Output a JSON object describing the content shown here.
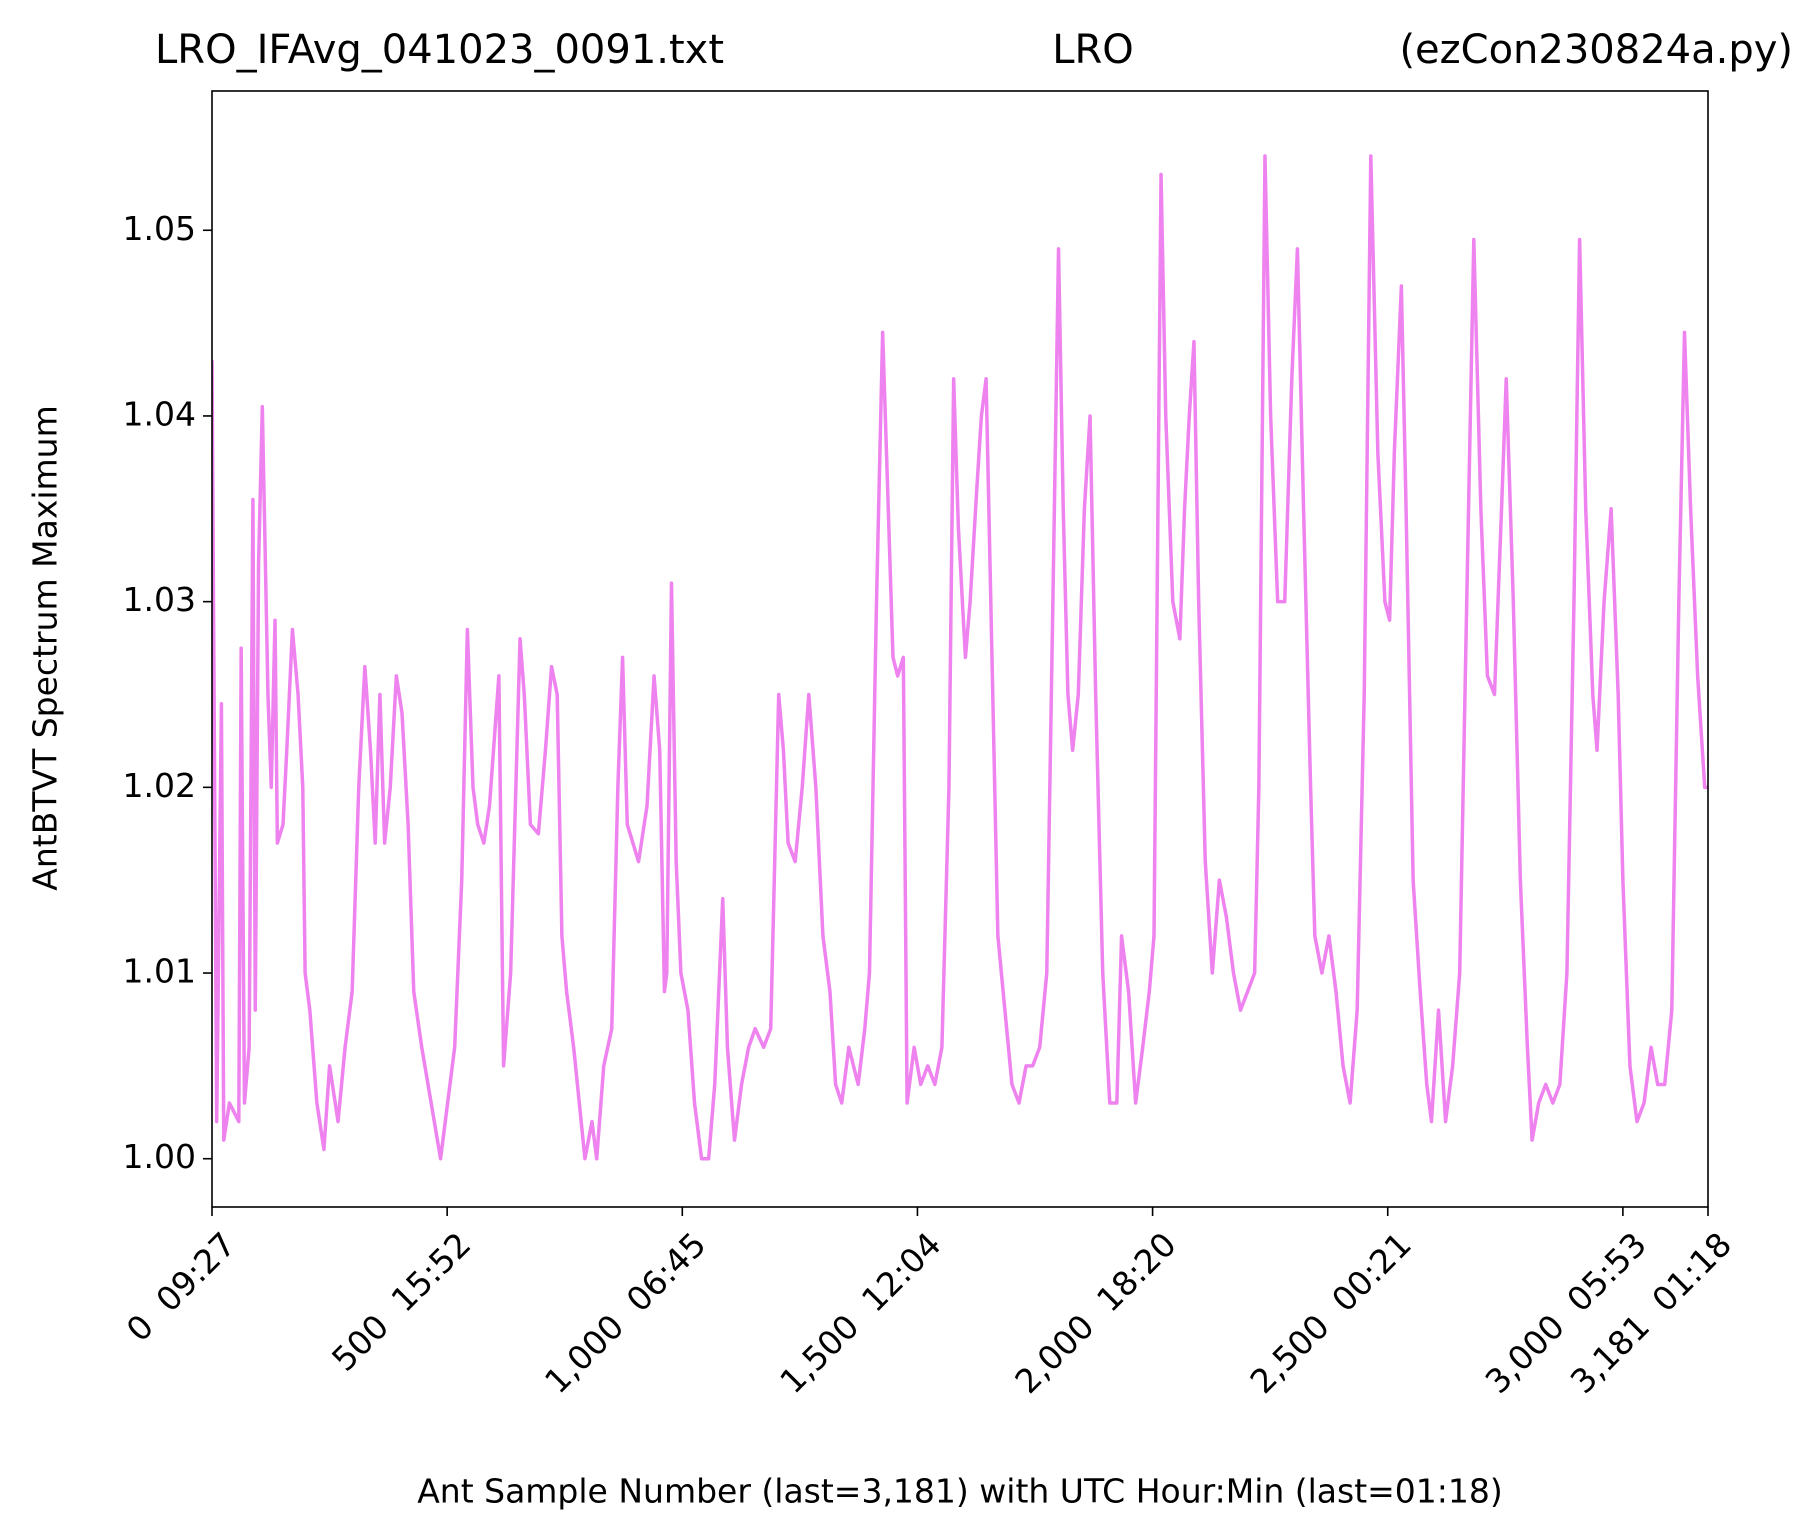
{
  "chart_data": {
    "type": "line",
    "title": [
      "LRO_IFAvg_041023_0091.txt",
      "LRO",
      "(ezCon230824a.py)"
    ],
    "x_label": "Ant Sample Number (last=3,181) with UTC Hour:Min (last=01:18)",
    "y_label": "AntBTVT Spectrum Maximum",
    "xlim": [
      0,
      3181
    ],
    "ylim": [
      0.9974,
      1.0575
    ],
    "xticks": [
      {
        "value": 0,
        "label": "0  09:27"
      },
      {
        "value": 500,
        "label": "500  15:52"
      },
      {
        "value": 1000,
        "label": "1,000  06:45"
      },
      {
        "value": 1500,
        "label": "1,500  12:04"
      },
      {
        "value": 2000,
        "label": "2,000  18:20"
      },
      {
        "value": 2500,
        "label": "2,500  00:21"
      },
      {
        "value": 3000,
        "label": "3,000  05:53"
      },
      {
        "value": 3181,
        "label": "3,181  01:18"
      }
    ],
    "yticks": [
      {
        "value": 1,
        "label": "1.00"
      },
      1.01,
      1.02,
      1.03,
      1.04,
      1.05
    ],
    "grid": false,
    "color": "#ee82ee",
    "x": [
      0,
      10,
      20,
      25,
      37,
      57,
      62,
      69,
      79,
      87,
      92,
      99,
      107,
      119,
      126,
      134,
      139,
      151,
      159,
      171,
      183,
      193,
      198,
      208,
      223,
      238,
      250,
      268,
      283,
      298,
      312,
      325,
      337,
      347,
      357,
      367,
      379,
      392,
      404,
      417,
      429,
      446,
      466,
      486,
      501,
      516,
      531,
      543,
      555,
      565,
      578,
      590,
      610,
      620,
      635,
      655,
      664,
      677,
      694,
      709,
      722,
      734,
      744,
      754,
      769,
      781,
      793,
      808,
      818,
      833,
      850,
      863,
      873,
      883,
      895,
      907,
      925,
      940,
      952,
      962,
      967,
      977,
      987,
      997,
      1012,
      1026,
      1041,
      1056,
      1069,
      1086,
      1096,
      1111,
      1126,
      1141,
      1155,
      1173,
      1188,
      1205,
      1215,
      1225,
      1240,
      1255,
      1269,
      1284,
      1299,
      1314,
      1326,
      1339,
      1354,
      1374,
      1388,
      1398,
      1413,
      1426,
      1438,
      1448,
      1458,
      1470,
      1478,
      1493,
      1507,
      1522,
      1537,
      1552,
      1567,
      1577,
      1587,
      1602,
      1612,
      1626,
      1636,
      1646,
      1656,
      1671,
      1686,
      1701,
      1716,
      1731,
      1745,
      1760,
      1775,
      1788,
      1800,
      1810,
      1820,
      1830,
      1842,
      1855,
      1867,
      1879,
      1894,
      1909,
      1924,
      1934,
      1949,
      1964,
      1979,
      1993,
      2003,
      2018,
      2028,
      2043,
      2058,
      2068,
      2078,
      2088,
      2098,
      2112,
      2127,
      2142,
      2157,
      2172,
      2187,
      2202,
      2217,
      2226,
      2239,
      2251,
      2266,
      2281,
      2296,
      2308,
      2321,
      2336,
      2345,
      2360,
      2375,
      2390,
      2405,
      2420,
      2435,
      2450,
      2464,
      2479,
      2494,
      2504,
      2514,
      2529,
      2539,
      2554,
      2569,
      2583,
      2593,
      2608,
      2623,
      2638,
      2653,
      2668,
      2683,
      2698,
      2712,
      2727,
      2742,
      2752,
      2767,
      2782,
      2797,
      2807,
      2821,
      2836,
      2851,
      2866,
      2881,
      2896,
      2908,
      2921,
      2936,
      2945,
      2960,
      2975,
      2990,
      3000,
      3015,
      3030,
      3045,
      3060,
      3074,
      3089,
      3104,
      3119,
      3131,
      3144,
      3159,
      3174,
      3181
    ],
    "values": [
      1.043,
      1.002,
      1.0245,
      1.001,
      1.003,
      1.002,
      1.0275,
      1.003,
      1.006,
      1.0355,
      1.008,
      1.032,
      1.0405,
      1.025,
      1.02,
      1.029,
      1.017,
      1.018,
      1.022,
      1.0285,
      1.025,
      1.02,
      1.01,
      1.008,
      1.003,
      1.0005,
      1.005,
      1.002,
      1.006,
      1.009,
      1.02,
      1.0265,
      1.022,
      1.017,
      1.025,
      1.017,
      1.02,
      1.026,
      1.024,
      1.018,
      1.009,
      1.006,
      1.003,
      1.0,
      1.003,
      1.006,
      1.015,
      1.0285,
      1.02,
      1.018,
      1.017,
      1.019,
      1.026,
      1.005,
      1.01,
      1.028,
      1.025,
      1.018,
      1.0175,
      1.022,
      1.0265,
      1.025,
      1.012,
      1.009,
      1.006,
      1.003,
      1.0,
      1.002,
      1.0,
      1.005,
      1.007,
      1.02,
      1.027,
      1.018,
      1.017,
      1.016,
      1.019,
      1.026,
      1.022,
      1.009,
      1.01,
      1.031,
      1.016,
      1.01,
      1.008,
      1.003,
      1.0,
      1.0,
      1.004,
      1.014,
      1.006,
      1.001,
      1.004,
      1.006,
      1.007,
      1.006,
      1.007,
      1.025,
      1.022,
      1.017,
      1.016,
      1.02,
      1.025,
      1.02,
      1.012,
      1.009,
      1.004,
      1.003,
      1.006,
      1.004,
      1.007,
      1.01,
      1.03,
      1.0445,
      1.035,
      1.027,
      1.026,
      1.027,
      1.003,
      1.006,
      1.004,
      1.005,
      1.004,
      1.006,
      1.02,
      1.042,
      1.034,
      1.027,
      1.03,
      1.036,
      1.04,
      1.042,
      1.03,
      1.012,
      1.008,
      1.004,
      1.003,
      1.005,
      1.005,
      1.006,
      1.01,
      1.03,
      1.049,
      1.035,
      1.025,
      1.022,
      1.025,
      1.035,
      1.04,
      1.025,
      1.01,
      1.003,
      1.003,
      1.012,
      1.009,
      1.003,
      1.006,
      1.009,
      1.012,
      1.053,
      1.04,
      1.03,
      1.028,
      1.035,
      1.04,
      1.044,
      1.03,
      1.016,
      1.01,
      1.015,
      1.013,
      1.01,
      1.008,
      1.009,
      1.01,
      1.02,
      1.054,
      1.04,
      1.03,
      1.03,
      1.042,
      1.049,
      1.035,
      1.02,
      1.012,
      1.01,
      1.012,
      1.009,
      1.005,
      1.003,
      1.008,
      1.025,
      1.054,
      1.038,
      1.03,
      1.029,
      1.038,
      1.047,
      1.035,
      1.015,
      1.009,
      1.004,
      1.002,
      1.008,
      1.002,
      1.005,
      1.01,
      1.03,
      1.0495,
      1.035,
      1.026,
      1.025,
      1.035,
      1.042,
      1.03,
      1.015,
      1.006,
      1.001,
      1.003,
      1.004,
      1.003,
      1.004,
      1.01,
      1.03,
      1.0495,
      1.035,
      1.025,
      1.022,
      1.03,
      1.035,
      1.025,
      1.015,
      1.005,
      1.002,
      1.003,
      1.006,
      1.004,
      1.004,
      1.008,
      1.03,
      1.0445,
      1.035,
      1.026,
      1.02,
      1.02
    ]
  }
}
